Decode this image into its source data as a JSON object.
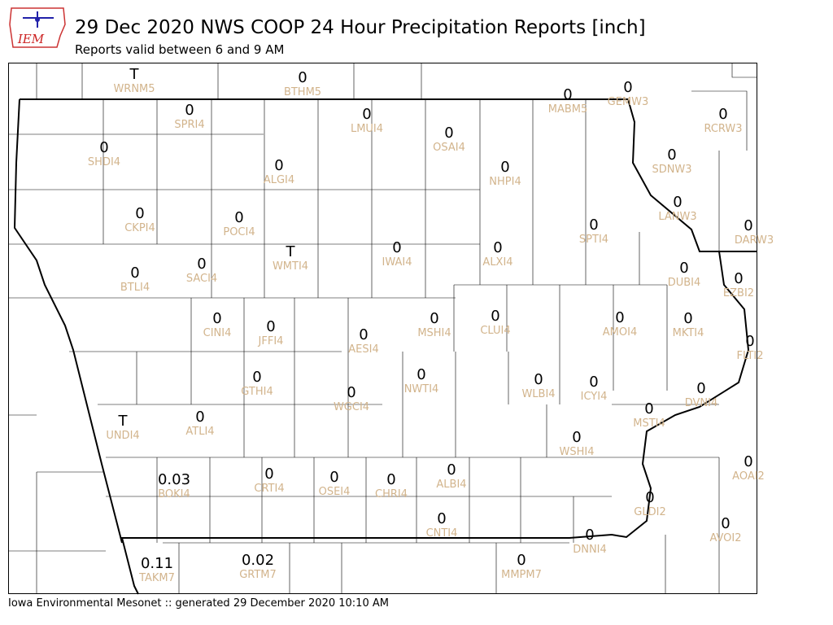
{
  "header": {
    "logo": "IEM",
    "title": "29 Dec 2020 NWS COOP 24 Hour Precipitation Reports [inch]",
    "subtitle": "Reports valid between 6 and 9 AM"
  },
  "stations": [
    {
      "value": "T",
      "id": "WRNM5"
    },
    {
      "value": 0,
      "id": "BTHM5"
    },
    {
      "value": 0,
      "id": "MABM5"
    },
    {
      "value": 0,
      "id": "GEMW3"
    },
    {
      "value": 0,
      "id": "SPRI4"
    },
    {
      "value": 0,
      "id": "LMUI4"
    },
    {
      "value": 0,
      "id": "OSAI4"
    },
    {
      "value": 0,
      "id": "RCRW3"
    },
    {
      "value": 0,
      "id": "SHDI4"
    },
    {
      "value": 0,
      "id": "ALGI4"
    },
    {
      "value": 0,
      "id": "NHPI4"
    },
    {
      "value": 0,
      "id": "SDNW3"
    },
    {
      "value": 0,
      "id": "LANW3"
    },
    {
      "value": 0,
      "id": "CKPI4"
    },
    {
      "value": 0,
      "id": "POCI4"
    },
    {
      "value": 0,
      "id": "SPTI4"
    },
    {
      "value": 0,
      "id": "DARW3"
    },
    {
      "value": "T",
      "id": "WMTI4"
    },
    {
      "value": 0,
      "id": "IWAI4"
    },
    {
      "value": 0,
      "id": "ALXI4"
    },
    {
      "value": 0,
      "id": "BTLI4"
    },
    {
      "value": 0,
      "id": "SACI4"
    },
    {
      "value": 0,
      "id": "DUBI4"
    },
    {
      "value": 0,
      "id": "EZBI2"
    },
    {
      "value": 0,
      "id": "CINI4"
    },
    {
      "value": 0,
      "id": "JFFI4"
    },
    {
      "value": 0,
      "id": "AESI4"
    },
    {
      "value": 0,
      "id": "MSHI4"
    },
    {
      "value": 0,
      "id": "CLUI4"
    },
    {
      "value": 0,
      "id": "AMOI4"
    },
    {
      "value": 0,
      "id": "MKTI4"
    },
    {
      "value": 0,
      "id": "FLTI2"
    },
    {
      "value": 0,
      "id": "GTHI4"
    },
    {
      "value": 0,
      "id": "WGCI4"
    },
    {
      "value": 0,
      "id": "NWTI4"
    },
    {
      "value": 0,
      "id": "WLBI4"
    },
    {
      "value": 0,
      "id": "ICYI4"
    },
    {
      "value": 0,
      "id": "DVNI4"
    },
    {
      "value": 0,
      "id": "MSTI4"
    },
    {
      "value": "T",
      "id": "UNDI4"
    },
    {
      "value": 0,
      "id": "ATLI4"
    },
    {
      "value": 0,
      "id": "WSHI4"
    },
    {
      "value": 0,
      "id": "AOAI2"
    },
    {
      "value": 0.03,
      "id": "BOKI4"
    },
    {
      "value": 0,
      "id": "CRTI4"
    },
    {
      "value": 0,
      "id": "OSEI4"
    },
    {
      "value": 0,
      "id": "CHRI4"
    },
    {
      "value": 0,
      "id": "ALBI4"
    },
    {
      "value": 0,
      "id": "GLDI2"
    },
    {
      "value": 0,
      "id": "CNTI4"
    },
    {
      "value": 0,
      "id": "AVOI2"
    },
    {
      "value": 0,
      "id": "DNNI4"
    },
    {
      "value": 0,
      "id": "MMPM7"
    },
    {
      "value": 0.11,
      "id": "TAKM7"
    },
    {
      "value": 0.02,
      "id": "GRTM7"
    }
  ],
  "footer": "Iowa Environmental Mesonet :: generated 29 December 2020 10:10 AM"
}
